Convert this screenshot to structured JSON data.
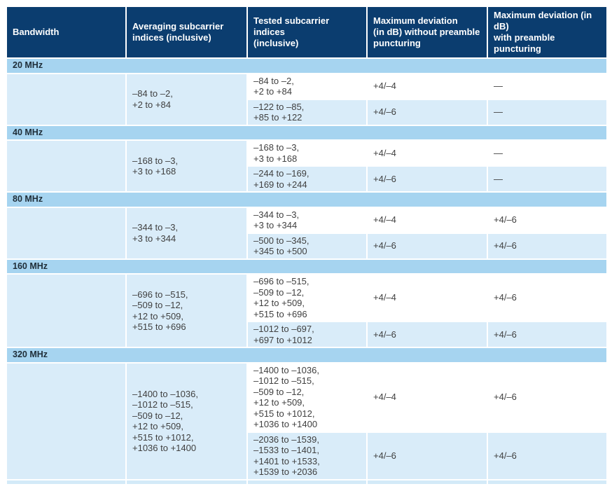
{
  "table": {
    "headers": [
      "Bandwidth",
      "Averaging subcarrier\nindices (inclusive)",
      "Tested subcarrier indices\n(inclusive)",
      "Maximum deviation\n(in dB) without preamble\npuncturing",
      "Maximum deviation (in dB)\nwith preamble puncturing"
    ],
    "sections": [
      {
        "bandwidth": "20 MHz",
        "averaging": "–84 to –2,\n+2 to +84",
        "rows": [
          {
            "tested": "–84 to –2,\n+2 to +84",
            "dev_without": "+4/–4",
            "dev_with": "—"
          },
          {
            "tested": "–122 to –85,\n+85 to +122",
            "dev_without": "+4/–6",
            "dev_with": "—"
          }
        ]
      },
      {
        "bandwidth": "40 MHz",
        "averaging": "–168 to –3,\n+3 to +168",
        "rows": [
          {
            "tested": "–168 to –3,\n+3 to +168",
            "dev_without": "+4/–4",
            "dev_with": "—"
          },
          {
            "tested": "–244 to –169,\n+169 to +244",
            "dev_without": "+4/–6",
            "dev_with": "—"
          }
        ]
      },
      {
        "bandwidth": "80 MHz",
        "averaging": "–344 to –3,\n+3 to +344",
        "rows": [
          {
            "tested": "–344 to –3,\n+3 to +344",
            "dev_without": "+4/–4",
            "dev_with": "+4/–6"
          },
          {
            "tested": "–500 to –345,\n+345 to +500",
            "dev_without": "+4/–6",
            "dev_with": "+4/–6"
          }
        ]
      },
      {
        "bandwidth": "160 MHz",
        "averaging": "–696 to –515,\n–509 to –12,\n+12 to +509,\n+515 to +696",
        "rows": [
          {
            "tested": "–696 to –515,\n–509 to –12,\n+12 to +509,\n+515 to +696",
            "dev_without": "+4/–4",
            "dev_with": "+4/–6"
          },
          {
            "tested": "–1012 to –697,\n+697 to +1012",
            "dev_without": "+4/–6",
            "dev_with": "+4/–6"
          }
        ]
      },
      {
        "bandwidth": "320 MHz",
        "averaging": "–1400 to –1036,\n–1012 to –515,\n–509 to –12,\n+12 to +509,\n+515 to +1012,\n+1036 to +1400",
        "rows": [
          {
            "tested": "–1400 to –1036,\n–1012 to –515,\n–509 to –12,\n+12 to +509,\n+515 to +1012,\n+1036 to +1400",
            "dev_without": "+4/–4",
            "dev_with": "+4/–6"
          },
          {
            "tested": "–2036 to –1539,\n–1533 to –1401,\n+1401 to +1533,\n+1539 to +2036",
            "dev_without": "+4/–6",
            "dev_with": "+4/–6"
          }
        ]
      }
    ]
  },
  "colors": {
    "header_bg": "#0b3d6f",
    "header_text": "#ffffff",
    "band_bg": "#a6d4f0",
    "band_text": "#1e2d38",
    "row_light_bg": "#d9ecf9",
    "row_white_bg": "#ffffff",
    "data_text": "#404040",
    "strip_bg": "#d3eaf8"
  }
}
